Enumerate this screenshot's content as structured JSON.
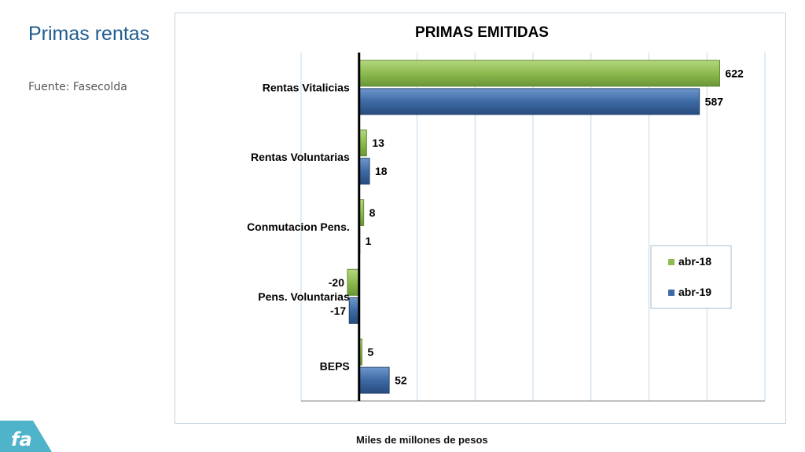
{
  "slide": {
    "title": "Primas rentas",
    "source": "Fuente: Fasecolda",
    "footnote": "Miles de millones de pesos",
    "logo_text": "fa"
  },
  "colors": {
    "abr18": "#8dbb4f",
    "abr19": "#3d6aa5",
    "title_color": "#1f5c8e",
    "grid": "#c6d8e8"
  },
  "chart_data": {
    "type": "bar",
    "orientation": "horizontal",
    "title": "PRIMAS EMITIDAS",
    "categories": [
      "Rentas Vitalicias",
      "Rentas Voluntarias",
      "Conmutacion Pens.",
      "Pens. Voluntarias",
      "BEPS"
    ],
    "series": [
      {
        "name": "abr-18",
        "values": [
          622,
          13,
          8,
          -20,
          5
        ]
      },
      {
        "name": "abr-19",
        "values": [
          587,
          18,
          1,
          -17,
          52
        ]
      }
    ],
    "data_labels": [
      [
        "622",
        "13",
        "8",
        "-20",
        "5"
      ],
      [
        "587",
        "18",
        "1",
        "-17",
        "52"
      ]
    ],
    "xlim": [
      -100,
      700
    ],
    "grid": true,
    "legend_position": "right"
  }
}
